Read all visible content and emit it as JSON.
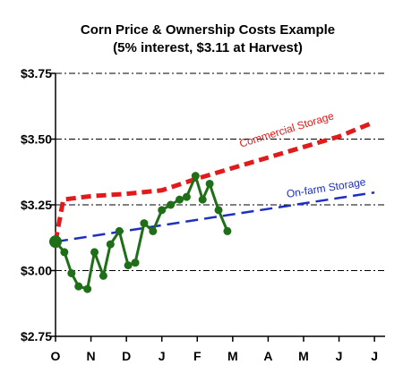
{
  "chart_data": {
    "type": "line",
    "title": "Corn Price & Ownership Costs Example",
    "subtitle": "(5% interest, $3.11 at Harvest)",
    "xlabel": "",
    "ylabel": "",
    "x_ticks": [
      "O",
      "N",
      "D",
      "J",
      "F",
      "M",
      "A",
      "M",
      "J",
      "J"
    ],
    "xlim": [
      0,
      9.3
    ],
    "y_ticks": [
      "$2.75",
      "$3.00",
      "$3.25",
      "$3.50",
      "$3.75"
    ],
    "y_tick_values": [
      2.75,
      3.0,
      3.25,
      3.5,
      3.75
    ],
    "ylim": [
      2.75,
      3.75
    ],
    "grid": "horizontal dash-dot",
    "legend": "none",
    "series": [
      {
        "name": "Commercial Storage",
        "color": "#e31a1c",
        "style": "dashed",
        "x": [
          0,
          0.22,
          0.5,
          1,
          2,
          3,
          4,
          5,
          6,
          7,
          8,
          9
        ],
        "y": [
          3.11,
          3.27,
          3.275,
          3.283,
          3.292,
          3.305,
          3.35,
          3.39,
          3.43,
          3.47,
          3.51,
          3.565
        ]
      },
      {
        "name": "On-farm Storage",
        "color": "#1f2fbf",
        "style": "dashed",
        "x": [
          0,
          9
        ],
        "y": [
          3.11,
          3.297
        ]
      },
      {
        "name": "",
        "color": "#1f6e18",
        "style": "solid-markers",
        "x": [
          0,
          0.25,
          0.45,
          0.65,
          0.9,
          1.1,
          1.35,
          1.55,
          1.8,
          2.05,
          2.25,
          2.5,
          2.75,
          3.0,
          3.25,
          3.5,
          3.7,
          3.95,
          4.15,
          4.35,
          4.6,
          4.85
        ],
        "y": [
          3.11,
          3.07,
          2.99,
          2.94,
          2.93,
          3.07,
          2.98,
          3.1,
          3.15,
          3.02,
          3.03,
          3.18,
          3.15,
          3.23,
          3.25,
          3.27,
          3.28,
          3.36,
          3.27,
          3.33,
          3.23,
          3.15
        ]
      }
    ]
  }
}
